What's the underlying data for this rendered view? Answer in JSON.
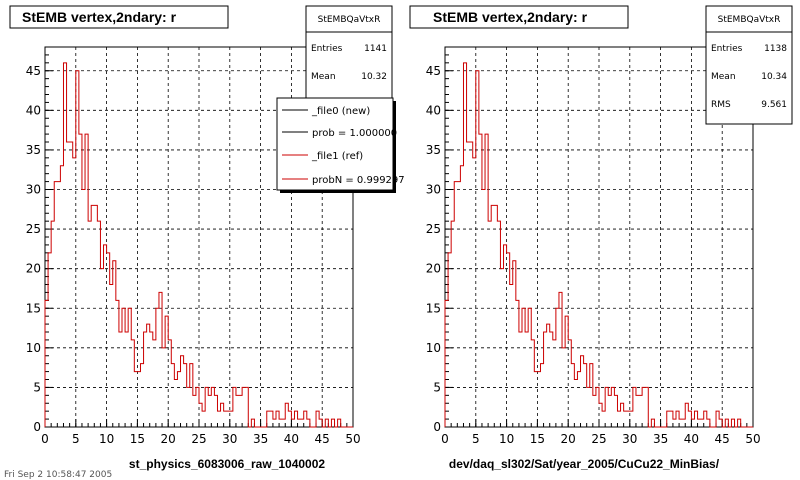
{
  "footer_text": "Fri Sep  2 10:58:47 2005",
  "chart_data": [
    {
      "type": "histogram",
      "title": "StEMB  vertex,2ndary: r",
      "xlabel": "st_physics_6083006_raw_1040002",
      "xlim": [
        0,
        50
      ],
      "ylim": [
        0,
        48
      ],
      "x_ticks": [
        0,
        5,
        10,
        15,
        20,
        25,
        30,
        35,
        40,
        45,
        50
      ],
      "y_ticks": [
        0,
        5,
        10,
        15,
        20,
        25,
        30,
        35,
        40,
        45
      ],
      "grid": true,
      "bin_width": 0.5,
      "stats": {
        "name": "StEMBQaVtxR",
        "rows": [
          {
            "label": "Entries",
            "value": "1141"
          },
          {
            "label": "Mean",
            "value": "10.32"
          }
        ]
      },
      "legend": {
        "placement": "top-right",
        "entries": [
          {
            "text": "_file0 (new)",
            "color": "#000000"
          },
          {
            "text": "prob = 1.000000",
            "color": "#000000"
          },
          {
            "text": "_file1 (ref)",
            "color": "#cc0000"
          },
          {
            "text": "probN = 0.999297",
            "color": "#cc0000"
          }
        ]
      },
      "series": [
        {
          "name": "_file0 (new)",
          "color": "#cc0000",
          "values": [
            16,
            22,
            26,
            31,
            31,
            33,
            46,
            36,
            36,
            34,
            45,
            37,
            30,
            37,
            26,
            28,
            28,
            26,
            20,
            23,
            22,
            18,
            21,
            16,
            12,
            15,
            12,
            15,
            11,
            7,
            7,
            8,
            12,
            13,
            12,
            11,
            15,
            17,
            10,
            14,
            11,
            8,
            6,
            7,
            9,
            8,
            5,
            8,
            4,
            5,
            3,
            2,
            5,
            4,
            5,
            4,
            2,
            3,
            2,
            2,
            2,
            5,
            4,
            4,
            5,
            5,
            0,
            1,
            0,
            0,
            0,
            0,
            2,
            2,
            1,
            2,
            1,
            1,
            3,
            2,
            1,
            2,
            1,
            1,
            2,
            1,
            0,
            0,
            2,
            1,
            0,
            1,
            0,
            1,
            0,
            1,
            0,
            0,
            0,
            0
          ]
        }
      ]
    },
    {
      "type": "histogram",
      "title": "StEMB  vertex,2ndary: r",
      "xlabel": "dev/daq_sl302/Sat/year_2005/CuCu22_MinBias/",
      "xlim": [
        0,
        50
      ],
      "ylim": [
        0,
        48
      ],
      "x_ticks": [
        0,
        5,
        10,
        15,
        20,
        25,
        30,
        35,
        40,
        45,
        50
      ],
      "y_ticks": [
        0,
        5,
        10,
        15,
        20,
        25,
        30,
        35,
        40,
        45
      ],
      "grid": true,
      "bin_width": 0.5,
      "stats": {
        "name": "StEMBQaVtxR",
        "rows": [
          {
            "label": "Entries",
            "value": "1138"
          },
          {
            "label": "Mean",
            "value": "10.34"
          },
          {
            "label": "RMS",
            "value": "9.561"
          }
        ]
      },
      "series": [
        {
          "name": "_file1 (ref)",
          "color": "#cc0000",
          "values": [
            16,
            22,
            26,
            31,
            31,
            33,
            46,
            36,
            36,
            34,
            45,
            37,
            30,
            37,
            26,
            28,
            28,
            26,
            20,
            23,
            22,
            18,
            21,
            16,
            12,
            15,
            12,
            15,
            11,
            7,
            7,
            8,
            12,
            13,
            12,
            11,
            15,
            17,
            10,
            14,
            11,
            8,
            6,
            7,
            9,
            8,
            5,
            8,
            4,
            5,
            3,
            2,
            5,
            4,
            5,
            4,
            2,
            3,
            2,
            2,
            2,
            5,
            4,
            4,
            5,
            5,
            0,
            1,
            0,
            0,
            0,
            0,
            2,
            2,
            1,
            2,
            1,
            1,
            3,
            2,
            1,
            2,
            1,
            1,
            2,
            1,
            0,
            0,
            2,
            1,
            0,
            1,
            0,
            1,
            0,
            1,
            0,
            0,
            0,
            0
          ]
        }
      ]
    }
  ]
}
